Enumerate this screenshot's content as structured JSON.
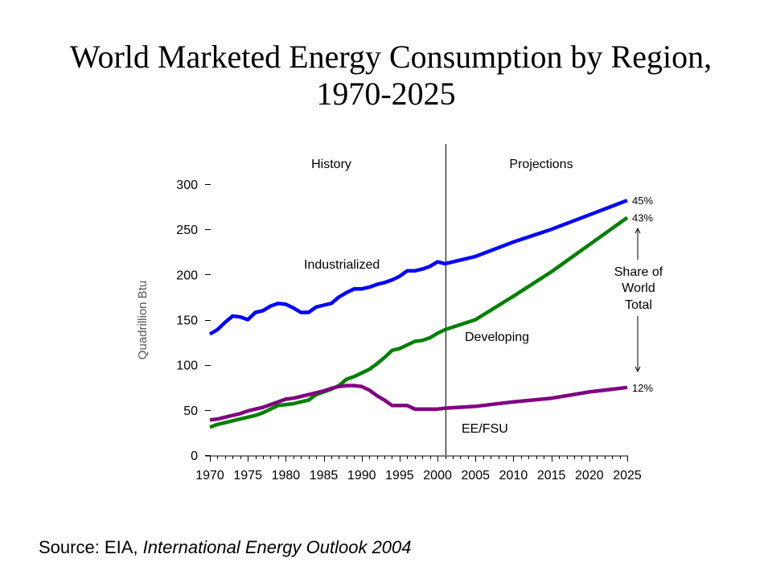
{
  "slide": {
    "title_line1": "World Marketed Energy Consumption by Region,",
    "title_line2": "1970-2025",
    "source_prefix": "Source:  EIA, ",
    "source_italic": "International Energy Outlook 2004"
  },
  "chart_data": {
    "type": "line",
    "title": "World Marketed Energy Consumption by Region, 1970-2025",
    "xlabel": "",
    "ylabel": "Quadrillion Btu",
    "xlim": [
      1970,
      2025
    ],
    "ylim": [
      0,
      300
    ],
    "grid": false,
    "x_ticks": [
      1970,
      1975,
      1980,
      1985,
      1990,
      1995,
      2000,
      2005,
      2010,
      2015,
      2020,
      2025
    ],
    "x_tick_labels": [
      "1970",
      "1975",
      "1980",
      "1985",
      "1990",
      "1995",
      "2000",
      "2005",
      "2010",
      "2015",
      "2020",
      "2025"
    ],
    "y_ticks": [
      0,
      50,
      100,
      150,
      200,
      250,
      300
    ],
    "y_tick_labels": [
      "0",
      "50",
      "100",
      "150",
      "200",
      "250",
      "300"
    ],
    "divider_year": 2001,
    "section_labels": {
      "history": "History",
      "projections": "Projections"
    },
    "series": [
      {
        "name": "Industrialized",
        "color": "#0000ff",
        "end_label": "45%",
        "points": [
          [
            1970,
            134
          ],
          [
            1971,
            139
          ],
          [
            1972,
            147
          ],
          [
            1973,
            154
          ],
          [
            1974,
            153
          ],
          [
            1975,
            150
          ],
          [
            1976,
            158
          ],
          [
            1977,
            160
          ],
          [
            1978,
            165
          ],
          [
            1979,
            168
          ],
          [
            1980,
            167
          ],
          [
            1981,
            163
          ],
          [
            1982,
            158
          ],
          [
            1983,
            158
          ],
          [
            1984,
            164
          ],
          [
            1985,
            166
          ],
          [
            1986,
            168
          ],
          [
            1987,
            175
          ],
          [
            1988,
            180
          ],
          [
            1989,
            184
          ],
          [
            1990,
            184
          ],
          [
            1991,
            186
          ],
          [
            1992,
            189
          ],
          [
            1993,
            191
          ],
          [
            1994,
            194
          ],
          [
            1995,
            198
          ],
          [
            1996,
            204
          ],
          [
            1997,
            204
          ],
          [
            1998,
            206
          ],
          [
            1999,
            209
          ],
          [
            2000,
            214
          ],
          [
            2001,
            212
          ],
          [
            2005,
            220
          ],
          [
            2010,
            236
          ],
          [
            2015,
            250
          ],
          [
            2020,
            266
          ],
          [
            2025,
            282
          ]
        ]
      },
      {
        "name": "Developing",
        "color": "#008000",
        "end_label": "43%",
        "points": [
          [
            1970,
            31
          ],
          [
            1971,
            34
          ],
          [
            1972,
            36
          ],
          [
            1973,
            38
          ],
          [
            1974,
            40
          ],
          [
            1975,
            42
          ],
          [
            1976,
            44
          ],
          [
            1977,
            47
          ],
          [
            1978,
            51
          ],
          [
            1979,
            55
          ],
          [
            1980,
            56
          ],
          [
            1981,
            57
          ],
          [
            1982,
            59
          ],
          [
            1983,
            61
          ],
          [
            1984,
            67
          ],
          [
            1985,
            70
          ],
          [
            1986,
            73
          ],
          [
            1987,
            77
          ],
          [
            1988,
            84
          ],
          [
            1989,
            87
          ],
          [
            1990,
            91
          ],
          [
            1991,
            95
          ],
          [
            1992,
            101
          ],
          [
            1993,
            108
          ],
          [
            1994,
            116
          ],
          [
            1995,
            118
          ],
          [
            1996,
            122
          ],
          [
            1997,
            126
          ],
          [
            1998,
            127
          ],
          [
            1999,
            130
          ],
          [
            2000,
            135
          ],
          [
            2001,
            139
          ],
          [
            2005,
            150
          ],
          [
            2010,
            176
          ],
          [
            2015,
            203
          ],
          [
            2020,
            233
          ],
          [
            2025,
            263
          ]
        ]
      },
      {
        "name": "EE/FSU",
        "color": "#800080",
        "end_label": "12%",
        "points": [
          [
            1970,
            39
          ],
          [
            1971,
            40
          ],
          [
            1972,
            42
          ],
          [
            1973,
            44
          ],
          [
            1974,
            46
          ],
          [
            1975,
            49
          ],
          [
            1976,
            51
          ],
          [
            1977,
            53
          ],
          [
            1978,
            56
          ],
          [
            1979,
            59
          ],
          [
            1980,
            62
          ],
          [
            1981,
            63
          ],
          [
            1982,
            65
          ],
          [
            1983,
            67
          ],
          [
            1984,
            69
          ],
          [
            1985,
            71
          ],
          [
            1986,
            74
          ],
          [
            1987,
            76
          ],
          [
            1988,
            77
          ],
          [
            1989,
            77
          ],
          [
            1990,
            76
          ],
          [
            1991,
            72
          ],
          [
            1992,
            66
          ],
          [
            1993,
            61
          ],
          [
            1994,
            55
          ],
          [
            1995,
            55
          ],
          [
            1996,
            55
          ],
          [
            1997,
            51
          ],
          [
            1998,
            51
          ],
          [
            1999,
            51
          ],
          [
            2000,
            51
          ],
          [
            2001,
            52
          ],
          [
            2005,
            54
          ],
          [
            2010,
            59
          ],
          [
            2015,
            63
          ],
          [
            2020,
            70
          ],
          [
            2025,
            75
          ]
        ]
      }
    ],
    "annotations": {
      "industrialized_label": "Industrialized",
      "developing_label": "Developing",
      "eefsu_label": "EE/FSU",
      "share_label_lines": [
        "Share of",
        "World",
        "Total"
      ]
    }
  }
}
